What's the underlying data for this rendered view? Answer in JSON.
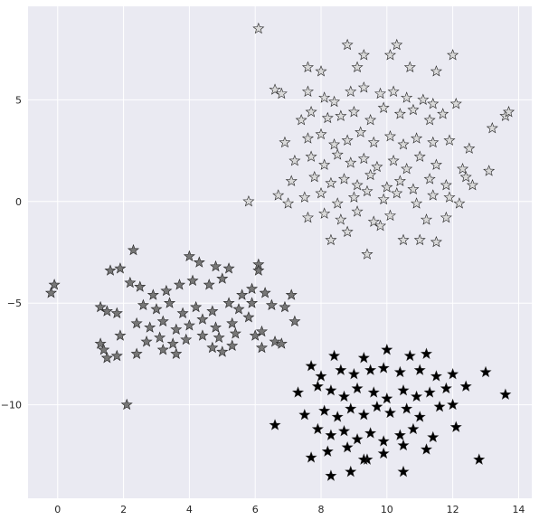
{
  "chart_data": {
    "type": "scatter",
    "title": "",
    "xlabel": "",
    "ylabel": "",
    "xlim": [
      -0.9,
      14.4
    ],
    "ylim": [
      -14.6,
      9.6
    ],
    "xticks": [
      0,
      2,
      4,
      6,
      8,
      10,
      12,
      14
    ],
    "yticks": [
      -10,
      -5,
      0,
      5
    ],
    "xtick_labels": [
      "0",
      "2",
      "4",
      "6",
      "8",
      "10",
      "12",
      "14"
    ],
    "ytick_labels": [
      "−10",
      "−5",
      "0",
      "5"
    ],
    "grid": true,
    "background": "#EAEAF2",
    "gridColor": "#FFFFFF",
    "marker": "star",
    "series": [
      {
        "fill": "#D9D9D9",
        "points": [
          [
            6.1,
            8.5
          ],
          [
            8.8,
            7.7
          ],
          [
            10.3,
            7.7
          ],
          [
            12.0,
            7.2
          ],
          [
            9.3,
            7.2
          ],
          [
            10.1,
            7.2
          ],
          [
            7.6,
            6.6
          ],
          [
            9.1,
            6.6
          ],
          [
            10.7,
            6.6
          ],
          [
            8.0,
            6.4
          ],
          [
            11.5,
            6.4
          ],
          [
            6.6,
            5.5
          ],
          [
            6.8,
            5.3
          ],
          [
            7.6,
            5.4
          ],
          [
            8.1,
            5.1
          ],
          [
            8.4,
            4.9
          ],
          [
            8.9,
            5.4
          ],
          [
            9.3,
            5.6
          ],
          [
            9.8,
            5.3
          ],
          [
            10.2,
            5.4
          ],
          [
            10.6,
            5.1
          ],
          [
            11.1,
            5.0
          ],
          [
            11.4,
            4.8
          ],
          [
            12.1,
            4.8
          ],
          [
            7.4,
            4.0
          ],
          [
            7.7,
            4.4
          ],
          [
            8.2,
            4.1
          ],
          [
            8.6,
            4.2
          ],
          [
            9.0,
            4.4
          ],
          [
            9.5,
            4.0
          ],
          [
            9.9,
            4.6
          ],
          [
            10.4,
            4.3
          ],
          [
            10.8,
            4.5
          ],
          [
            11.3,
            4.0
          ],
          [
            11.7,
            4.3
          ],
          [
            13.6,
            4.2
          ],
          [
            13.7,
            4.4
          ],
          [
            6.9,
            2.9
          ],
          [
            7.6,
            3.1
          ],
          [
            8.0,
            3.3
          ],
          [
            8.4,
            2.8
          ],
          [
            8.8,
            3.0
          ],
          [
            9.2,
            3.4
          ],
          [
            9.6,
            2.9
          ],
          [
            10.1,
            3.2
          ],
          [
            10.5,
            2.8
          ],
          [
            10.9,
            3.1
          ],
          [
            11.4,
            2.9
          ],
          [
            11.9,
            3.0
          ],
          [
            12.5,
            2.6
          ],
          [
            13.2,
            3.6
          ],
          [
            7.2,
            2.0
          ],
          [
            7.7,
            2.2
          ],
          [
            8.1,
            1.8
          ],
          [
            8.5,
            2.3
          ],
          [
            8.9,
            1.9
          ],
          [
            9.3,
            2.1
          ],
          [
            9.7,
            1.7
          ],
          [
            10.2,
            2.0
          ],
          [
            10.6,
            1.6
          ],
          [
            11.0,
            2.2
          ],
          [
            11.5,
            1.8
          ],
          [
            12.3,
            1.6
          ],
          [
            13.1,
            1.5
          ],
          [
            7.1,
            1.0
          ],
          [
            7.8,
            1.2
          ],
          [
            8.3,
            0.9
          ],
          [
            8.7,
            1.1
          ],
          [
            9.1,
            0.8
          ],
          [
            9.5,
            1.3
          ],
          [
            10.0,
            0.7
          ],
          [
            10.4,
            1.0
          ],
          [
            10.8,
            0.6
          ],
          [
            11.3,
            1.1
          ],
          [
            11.8,
            0.8
          ],
          [
            12.4,
            1.2
          ],
          [
            12.6,
            0.8
          ],
          [
            6.7,
            0.3
          ],
          [
            7.5,
            0.2
          ],
          [
            8.0,
            0.4
          ],
          [
            8.5,
            -0.1
          ],
          [
            9.0,
            0.2
          ],
          [
            9.4,
            0.5
          ],
          [
            9.9,
            0.1
          ],
          [
            10.3,
            0.4
          ],
          [
            10.9,
            -0.1
          ],
          [
            11.4,
            0.3
          ],
          [
            11.9,
            0.2
          ],
          [
            12.2,
            -0.1
          ],
          [
            5.8,
            0.0
          ],
          [
            7.0,
            -0.1
          ],
          [
            7.6,
            -0.8
          ],
          [
            8.1,
            -0.6
          ],
          [
            8.6,
            -0.9
          ],
          [
            9.1,
            -0.5
          ],
          [
            9.6,
            -1.0
          ],
          [
            10.1,
            -0.7
          ],
          [
            11.2,
            -0.9
          ],
          [
            11.8,
            -0.8
          ],
          [
            8.3,
            -1.9
          ],
          [
            8.8,
            -1.5
          ],
          [
            10.5,
            -1.9
          ],
          [
            11.0,
            -1.9
          ],
          [
            11.5,
            -2.0
          ],
          [
            9.4,
            -2.6
          ],
          [
            9.8,
            -1.2
          ]
        ]
      },
      {
        "fill": "#777777",
        "points": [
          [
            -0.2,
            -4.5
          ],
          [
            -0.1,
            -4.1
          ],
          [
            2.3,
            -2.4
          ],
          [
            1.6,
            -3.4
          ],
          [
            1.9,
            -3.3
          ],
          [
            4.0,
            -2.7
          ],
          [
            4.3,
            -3.0
          ],
          [
            4.8,
            -3.2
          ],
          [
            5.2,
            -3.3
          ],
          [
            6.1,
            -3.1
          ],
          [
            6.1,
            -3.4
          ],
          [
            2.2,
            -4.0
          ],
          [
            2.5,
            -4.2
          ],
          [
            2.9,
            -4.6
          ],
          [
            3.3,
            -4.4
          ],
          [
            3.7,
            -4.1
          ],
          [
            4.1,
            -3.9
          ],
          [
            4.6,
            -4.1
          ],
          [
            5.0,
            -3.8
          ],
          [
            5.6,
            -4.6
          ],
          [
            5.9,
            -4.3
          ],
          [
            6.3,
            -4.5
          ],
          [
            7.1,
            -4.6
          ],
          [
            1.3,
            -5.2
          ],
          [
            1.5,
            -5.4
          ],
          [
            1.8,
            -5.5
          ],
          [
            2.6,
            -5.1
          ],
          [
            3.0,
            -5.3
          ],
          [
            3.4,
            -5.0
          ],
          [
            3.8,
            -5.5
          ],
          [
            4.2,
            -5.2
          ],
          [
            4.7,
            -5.4
          ],
          [
            5.2,
            -5.0
          ],
          [
            5.5,
            -5.3
          ],
          [
            5.9,
            -5.0
          ],
          [
            6.5,
            -5.1
          ],
          [
            6.9,
            -5.2
          ],
          [
            2.4,
            -6.0
          ],
          [
            2.8,
            -6.2
          ],
          [
            3.2,
            -5.9
          ],
          [
            3.6,
            -6.3
          ],
          [
            4.0,
            -6.1
          ],
          [
            4.4,
            -5.8
          ],
          [
            4.8,
            -6.2
          ],
          [
            5.3,
            -6.0
          ],
          [
            5.8,
            -5.7
          ],
          [
            6.2,
            -6.4
          ],
          [
            7.2,
            -5.9
          ],
          [
            1.9,
            -6.6
          ],
          [
            2.7,
            -6.9
          ],
          [
            3.1,
            -6.7
          ],
          [
            3.5,
            -7.0
          ],
          [
            3.9,
            -6.8
          ],
          [
            4.4,
            -6.6
          ],
          [
            4.9,
            -6.7
          ],
          [
            5.4,
            -6.5
          ],
          [
            6.0,
            -6.6
          ],
          [
            6.6,
            -6.9
          ],
          [
            1.3,
            -7.0
          ],
          [
            1.4,
            -7.3
          ],
          [
            1.5,
            -7.7
          ],
          [
            1.8,
            -7.6
          ],
          [
            2.4,
            -7.5
          ],
          [
            3.2,
            -7.3
          ],
          [
            3.6,
            -7.5
          ],
          [
            4.7,
            -7.2
          ],
          [
            5.0,
            -7.4
          ],
          [
            5.3,
            -7.1
          ],
          [
            6.2,
            -7.2
          ],
          [
            6.8,
            -7.0
          ],
          [
            2.1,
            -10.0
          ]
        ]
      },
      {
        "fill": "#000000",
        "points": [
          [
            8.4,
            -7.6
          ],
          [
            9.3,
            -7.7
          ],
          [
            10.0,
            -7.3
          ],
          [
            10.7,
            -7.6
          ],
          [
            11.2,
            -7.5
          ],
          [
            7.7,
            -8.1
          ],
          [
            8.0,
            -8.6
          ],
          [
            8.6,
            -8.3
          ],
          [
            9.0,
            -8.5
          ],
          [
            9.5,
            -8.3
          ],
          [
            9.9,
            -8.2
          ],
          [
            10.4,
            -8.4
          ],
          [
            11.0,
            -8.3
          ],
          [
            11.5,
            -8.6
          ],
          [
            12.0,
            -8.5
          ],
          [
            7.3,
            -9.4
          ],
          [
            7.9,
            -9.1
          ],
          [
            8.3,
            -9.3
          ],
          [
            8.7,
            -9.6
          ],
          [
            9.1,
            -9.2
          ],
          [
            9.6,
            -9.4
          ],
          [
            10.0,
            -9.7
          ],
          [
            10.5,
            -9.3
          ],
          [
            10.9,
            -9.6
          ],
          [
            11.3,
            -9.4
          ],
          [
            11.8,
            -9.2
          ],
          [
            12.4,
            -9.1
          ],
          [
            13.0,
            -8.4
          ],
          [
            13.6,
            -9.5
          ],
          [
            6.6,
            -11.0
          ],
          [
            7.5,
            -10.5
          ],
          [
            8.1,
            -10.3
          ],
          [
            8.5,
            -10.6
          ],
          [
            8.9,
            -10.2
          ],
          [
            9.3,
            -10.5
          ],
          [
            9.7,
            -10.1
          ],
          [
            10.1,
            -10.4
          ],
          [
            10.6,
            -10.2
          ],
          [
            11.0,
            -10.6
          ],
          [
            11.6,
            -10.1
          ],
          [
            12.0,
            -10.0
          ],
          [
            7.9,
            -11.2
          ],
          [
            8.3,
            -11.5
          ],
          [
            8.7,
            -11.3
          ],
          [
            9.1,
            -11.7
          ],
          [
            9.5,
            -11.4
          ],
          [
            9.9,
            -11.8
          ],
          [
            10.4,
            -11.5
          ],
          [
            10.8,
            -11.2
          ],
          [
            11.4,
            -11.6
          ],
          [
            12.1,
            -11.1
          ],
          [
            7.7,
            -12.6
          ],
          [
            8.2,
            -12.3
          ],
          [
            8.8,
            -12.1
          ],
          [
            9.4,
            -12.7
          ],
          [
            9.9,
            -12.4
          ],
          [
            10.5,
            -12.0
          ],
          [
            11.2,
            -12.2
          ],
          [
            12.8,
            -12.7
          ],
          [
            8.3,
            -13.5
          ],
          [
            8.9,
            -13.3
          ],
          [
            9.3,
            -12.7
          ],
          [
            10.5,
            -13.3
          ]
        ]
      }
    ]
  }
}
